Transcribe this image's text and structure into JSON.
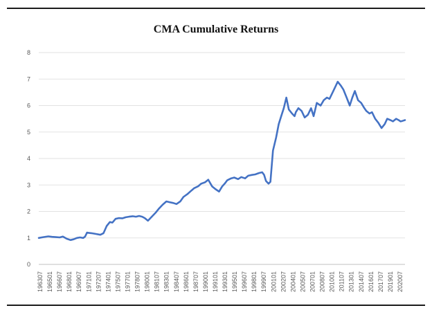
{
  "chart_data": {
    "type": "line",
    "title": "CMA Cumulative Returns",
    "xlabel": "",
    "ylabel": "",
    "ylim": [
      0,
      8
    ],
    "yticks": [
      "0",
      "1",
      "2",
      "3",
      "4",
      "5",
      "6",
      "7",
      "8"
    ],
    "x_tick_labels": [
      "196307",
      "196501",
      "196607",
      "196801",
      "196907",
      "197101",
      "197207",
      "197401",
      "197507",
      "197701",
      "197807",
      "198001",
      "198107",
      "198301",
      "198407",
      "198601",
      "198707",
      "199001",
      "199101",
      "199301",
      "199501",
      "199607",
      "199801",
      "199907",
      "200101",
      "200207",
      "200401",
      "200507",
      "200701",
      "200807",
      "201001",
      "201107",
      "201301",
      "201407",
      "201601",
      "201707",
      "201901",
      "202007"
    ],
    "grid": "horizontal",
    "legend": "none",
    "series": [
      {
        "color": "#4472C4",
        "x": [
          1963.5,
          1964.2,
          1965.0,
          1965.6,
          1966.2,
          1966.8,
          1967.3,
          1967.9,
          1968.5,
          1969.0,
          1969.5,
          1970.0,
          1970.5,
          1970.8,
          1971.1,
          1971.8,
          1972.5,
          1973.2,
          1973.7,
          1974.2,
          1974.7,
          1975.1,
          1975.6,
          1976.1,
          1976.7,
          1977.2,
          1977.7,
          1978.3,
          1978.8,
          1979.3,
          1979.8,
          1980.2,
          1980.7,
          1981.3,
          1981.9,
          1982.4,
          1983.0,
          1983.6,
          1984.1,
          1984.7,
          1985.2,
          1985.8,
          1986.3,
          1986.9,
          1987.5,
          1988.0,
          1988.6,
          1989.1,
          1989.7,
          1990.2,
          1990.8,
          1991.3,
          1991.9,
          1992.4,
          1992.8,
          1993.2,
          1993.8,
          1994.3,
          1994.9,
          1995.4,
          1996.0,
          1996.5,
          1997.1,
          1997.6,
          1998.2,
          1998.7,
          1999.0,
          1999.3,
          1999.7,
          2000.0,
          2000.4,
          2000.9,
          2001.3,
          2001.7,
          2002.1,
          2002.5,
          2002.9,
          2003.4,
          2003.8,
          2004.0,
          2004.4,
          2004.9,
          2005.4,
          2005.9,
          2006.4,
          2006.8,
          2007.3,
          2007.9,
          2008.4,
          2008.9,
          2009.3,
          2009.8,
          2010.2,
          2010.6,
          2011.1,
          2011.5,
          2012.0,
          2012.5,
          2012.9,
          2013.3,
          2013.8,
          2014.3,
          2014.8,
          2015.1,
          2015.6,
          2016.0,
          2016.5,
          2017.0,
          2017.5,
          2018.0,
          2018.4,
          2018.9,
          2019.3,
          2019.8,
          2020.2,
          2020.5,
          2020.8,
          2021.2
        ],
        "values": [
          1.0,
          1.03,
          1.06,
          1.04,
          1.03,
          1.02,
          1.05,
          0.97,
          0.92,
          0.95,
          1.0,
          1.02,
          1.0,
          1.05,
          1.2,
          1.18,
          1.15,
          1.12,
          1.18,
          1.45,
          1.6,
          1.58,
          1.72,
          1.75,
          1.74,
          1.78,
          1.8,
          1.82,
          1.8,
          1.83,
          1.8,
          1.75,
          1.65,
          1.8,
          1.95,
          2.1,
          2.25,
          2.38,
          2.35,
          2.32,
          2.28,
          2.38,
          2.55,
          2.65,
          2.78,
          2.88,
          2.95,
          3.05,
          3.1,
          3.2,
          2.95,
          2.85,
          2.75,
          2.95,
          3.05,
          3.18,
          3.25,
          3.28,
          3.22,
          3.3,
          3.25,
          3.35,
          3.38,
          3.4,
          3.45,
          3.48,
          3.38,
          3.15,
          3.05,
          3.12,
          4.3,
          4.8,
          5.3,
          5.6,
          5.9,
          6.3,
          5.85,
          5.7,
          5.6,
          5.75,
          5.9,
          5.8,
          5.55,
          5.65,
          5.9,
          5.6,
          6.1,
          6.0,
          6.2,
          6.3,
          6.25,
          6.5,
          6.7,
          6.9,
          6.75,
          6.6,
          6.3,
          6.0,
          6.3,
          6.55,
          6.2,
          6.1,
          5.9,
          5.8,
          5.7,
          5.75,
          5.5,
          5.35,
          5.15,
          5.3,
          5.5,
          5.45,
          5.4,
          5.5,
          5.45,
          5.4,
          5.42,
          5.45
        ]
      }
    ]
  }
}
